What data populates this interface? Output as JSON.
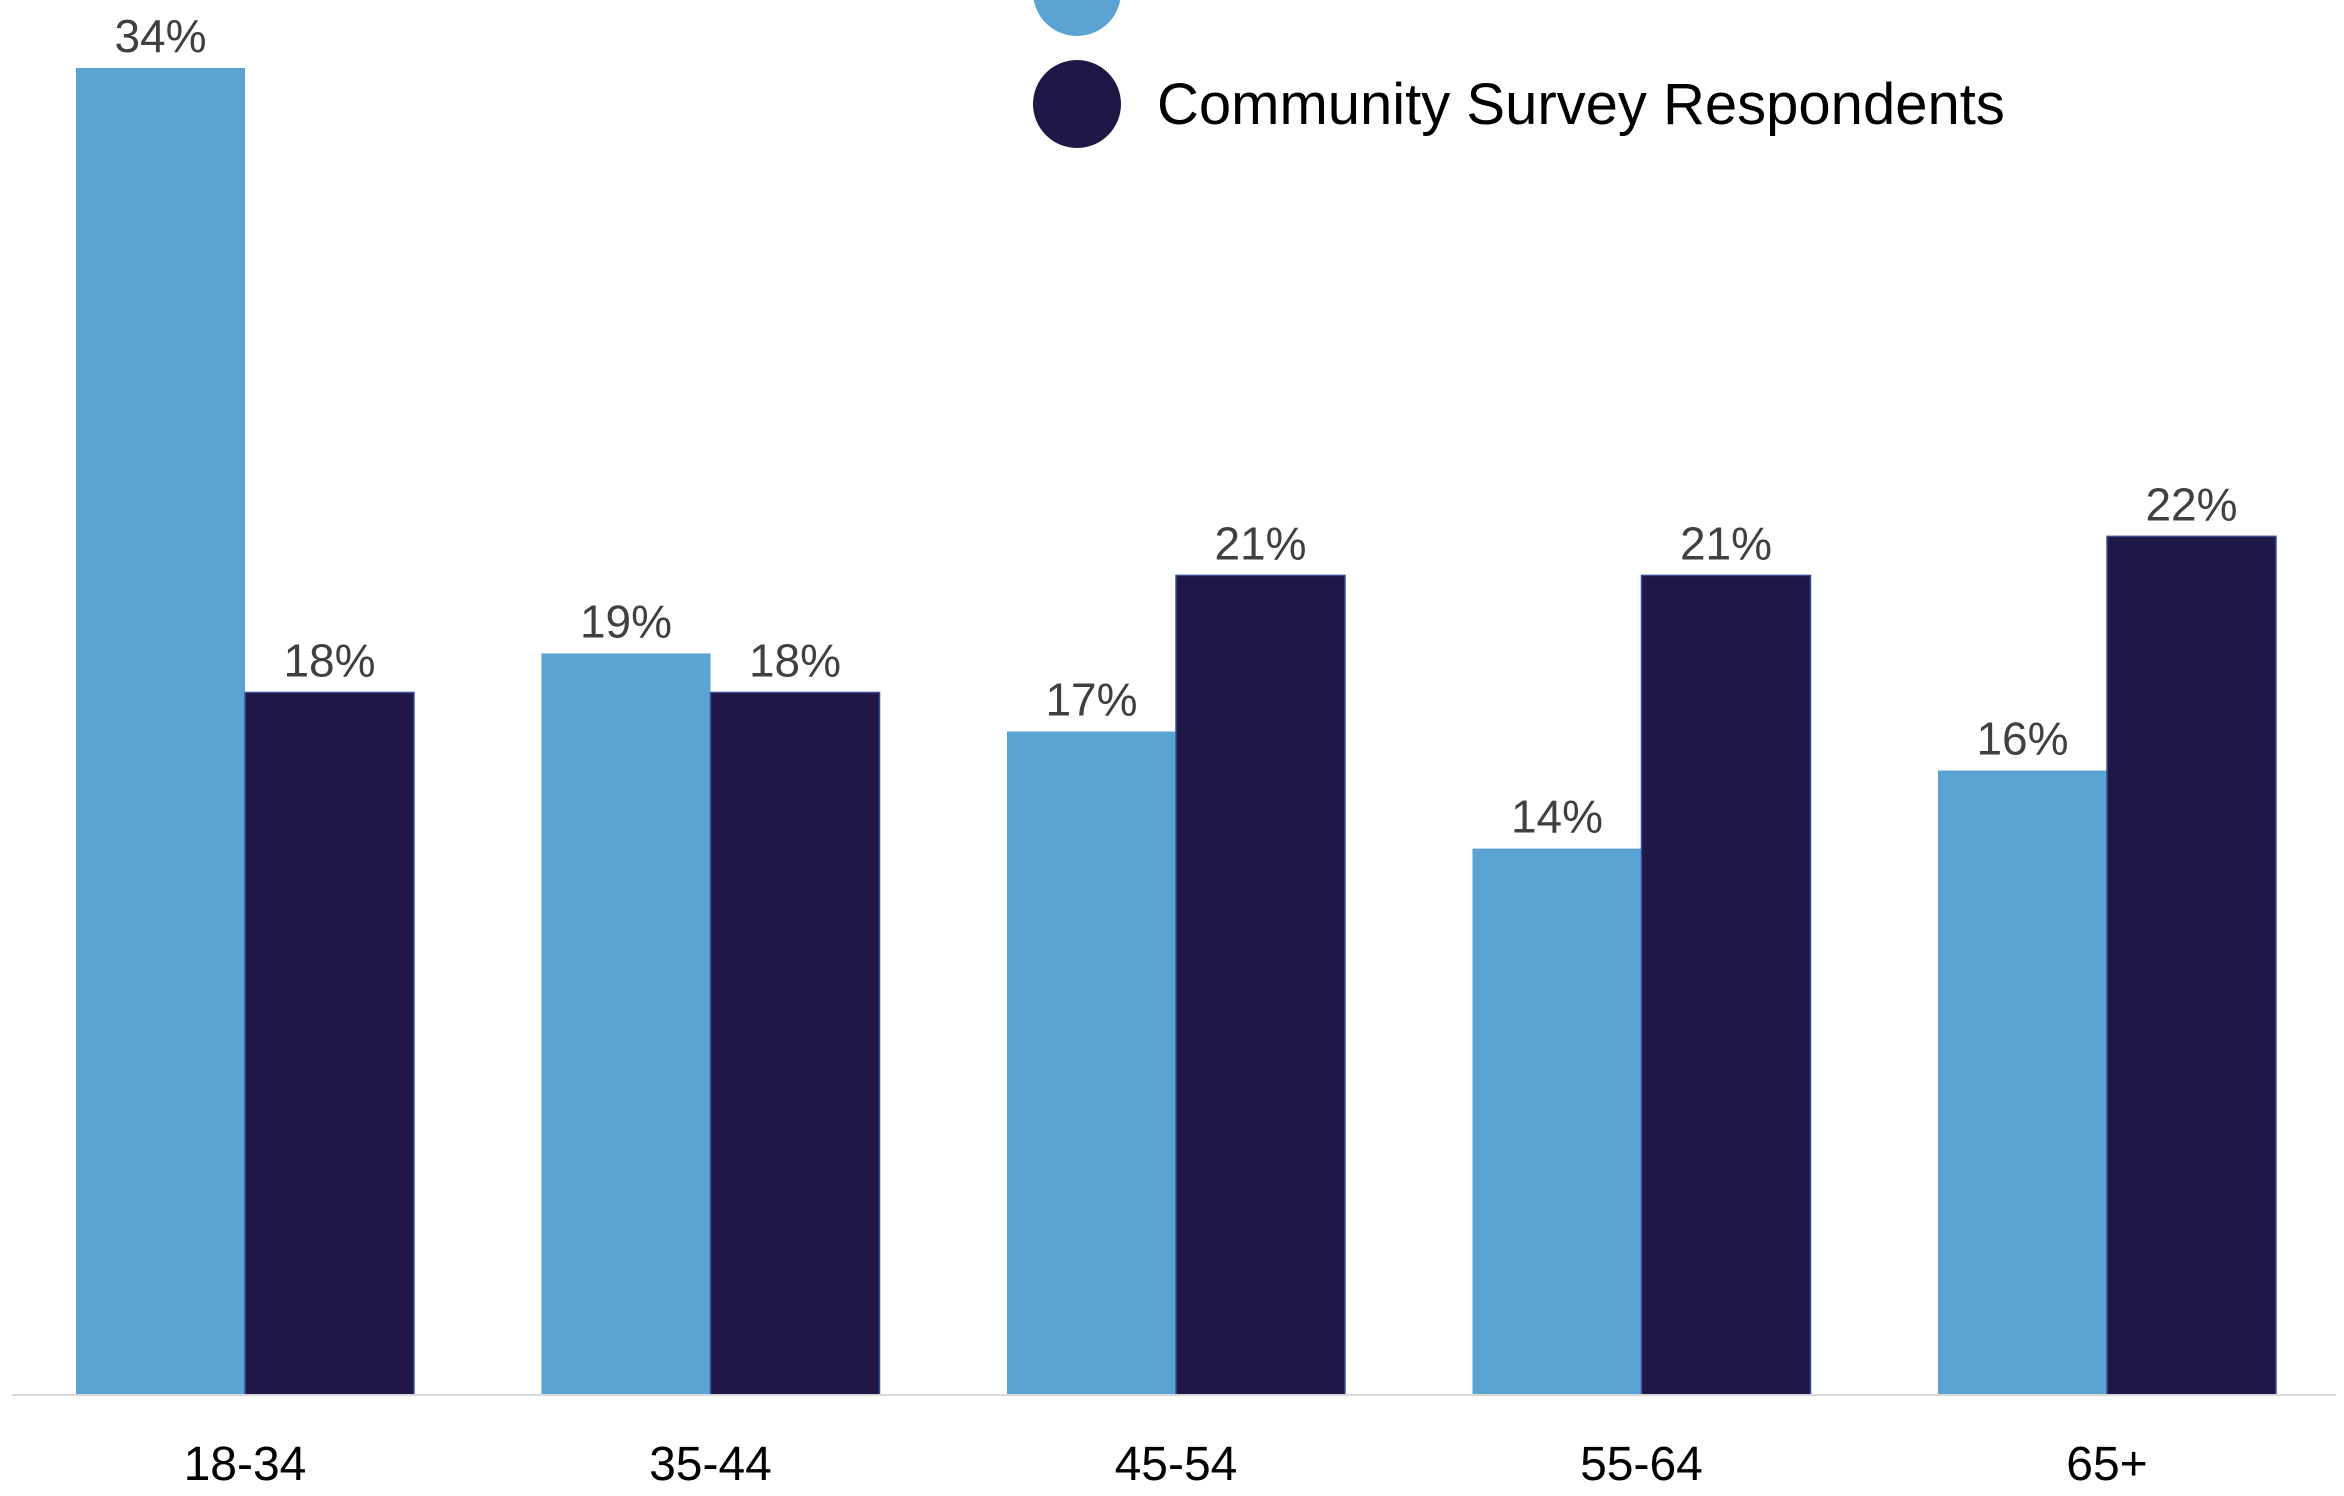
{
  "chart_data": {
    "type": "bar",
    "title": "",
    "xlabel": "",
    "ylabel": "",
    "ylim": [
      0,
      34
    ],
    "grid": false,
    "legend_position": "top-center",
    "categories": [
      "18-34",
      "35-44",
      "45-54",
      "55-64",
      "65+"
    ],
    "value_format": "percent",
    "series": [
      {
        "values": [
          34,
          19,
          17,
          14,
          16
        ],
        "color": "#5BA3D3"
      },
      {
        "name": "Community Survey Respondents",
        "values": [
          18,
          18,
          21,
          21,
          22
        ],
        "color": "#201747"
      }
    ],
    "data_labels": [
      [
        "34%",
        "19%",
        "17%",
        "14%",
        "16%"
      ],
      [
        "18%",
        "18%",
        "21%",
        "21%",
        "22%"
      ]
    ],
    "axis_color": "#D9D9D9"
  }
}
